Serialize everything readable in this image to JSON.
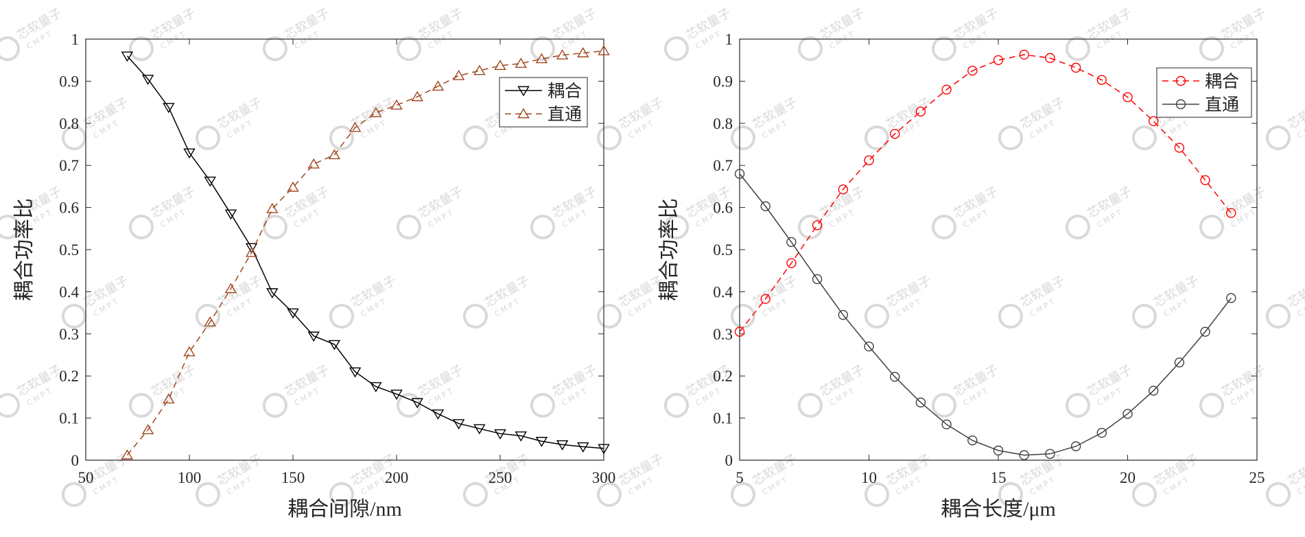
{
  "watermark": {
    "text": "芯软量子",
    "subtext": "CMPT",
    "color": "#d9d9d9"
  },
  "chart_data": [
    {
      "type": "line",
      "title": "",
      "xlabel": "耦合间隙/nm",
      "ylabel": "耦合功率比",
      "xlim": [
        50,
        300
      ],
      "ylim": [
        0,
        1
      ],
      "xticks": [
        50,
        100,
        150,
        200,
        250,
        300
      ],
      "yticks": [
        0,
        0.1,
        0.2,
        0.3,
        0.4,
        0.5,
        0.6,
        0.7,
        0.8,
        0.9,
        1
      ],
      "grid": false,
      "legend_position": "top-right",
      "x": [
        70,
        80,
        90,
        100,
        110,
        120,
        130,
        140,
        150,
        160,
        170,
        180,
        190,
        200,
        210,
        220,
        230,
        240,
        250,
        260,
        270,
        280,
        290,
        300
      ],
      "series": [
        {
          "name": "耦合",
          "color": "#000000",
          "marker": "triangle-down",
          "dash": "solid",
          "values": [
            0.96,
            0.905,
            0.838,
            0.73,
            0.663,
            0.585,
            0.505,
            0.398,
            0.35,
            0.295,
            0.275,
            0.21,
            0.175,
            0.157,
            0.137,
            0.11,
            0.087,
            0.075,
            0.063,
            0.058,
            0.045,
            0.037,
            0.032,
            0.028
          ]
        },
        {
          "name": "直通",
          "color": "#a0461e",
          "marker": "triangle-up",
          "dash": "dashed",
          "values": [
            0.012,
            0.072,
            0.145,
            0.257,
            0.328,
            0.407,
            0.493,
            0.597,
            0.648,
            0.703,
            0.725,
            0.79,
            0.825,
            0.843,
            0.863,
            0.888,
            0.913,
            0.925,
            0.937,
            0.942,
            0.953,
            0.962,
            0.967,
            0.972
          ]
        }
      ]
    },
    {
      "type": "line",
      "title": "",
      "xlabel": "耦合长度/μm",
      "ylabel": "耦合功率比",
      "xlim": [
        5,
        25
      ],
      "ylim": [
        0,
        1
      ],
      "xticks": [
        5,
        10,
        15,
        20,
        25
      ],
      "yticks": [
        0,
        0.1,
        0.2,
        0.3,
        0.4,
        0.5,
        0.6,
        0.7,
        0.8,
        0.9,
        1
      ],
      "grid": false,
      "legend_position": "top-right",
      "x": [
        5,
        6,
        7,
        8,
        9,
        10,
        11,
        12,
        13,
        14,
        15,
        16,
        17,
        18,
        19,
        20,
        21,
        22,
        23,
        24
      ],
      "series": [
        {
          "name": "耦合",
          "color": "#ff0000",
          "marker": "circle",
          "dash": "dashed",
          "values": [
            0.305,
            0.383,
            0.468,
            0.558,
            0.643,
            0.712,
            0.775,
            0.828,
            0.88,
            0.925,
            0.95,
            0.963,
            0.955,
            0.932,
            0.903,
            0.862,
            0.805,
            0.742,
            0.665,
            0.587
          ]
        },
        {
          "name": "直通",
          "color": "#404040",
          "marker": "circle",
          "dash": "solid",
          "values": [
            0.68,
            0.603,
            0.518,
            0.43,
            0.345,
            0.27,
            0.198,
            0.137,
            0.085,
            0.047,
            0.023,
            0.012,
            0.015,
            0.033,
            0.065,
            0.11,
            0.165,
            0.232,
            0.305,
            0.385
          ]
        }
      ]
    }
  ]
}
